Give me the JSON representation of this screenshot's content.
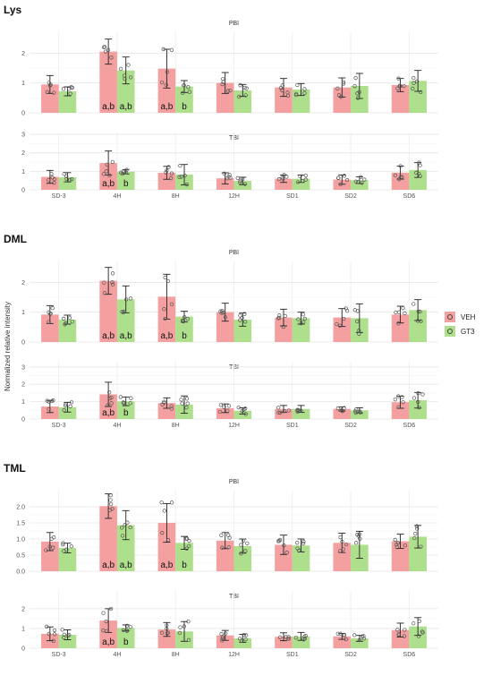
{
  "chart_data": {
    "type": "bar",
    "ylabel": "Normalized relative intensity",
    "categories": [
      "SD-3",
      "4H",
      "8H",
      "12H",
      "SD1",
      "SD2",
      "SD6"
    ],
    "legend": {
      "placement": "right",
      "entries": [
        {
          "name": "VEH",
          "color": "#f4a0a0"
        },
        {
          "name": "GT3",
          "color": "#addf8c"
        }
      ]
    },
    "error_bars": true,
    "grid": true,
    "groups": [
      {
        "title": "Lys",
        "panels": [
          {
            "title": "PBI",
            "ylim": [
              0,
              2.7
            ],
            "yticks": [
              "0",
              "1",
              "2"
            ],
            "ytick_values": [
              0,
              1,
              2
            ],
            "series": [
              {
                "name": "VEH",
                "values": [
                  0.95,
                  2.05,
                  1.48,
                  1.0,
                  0.85,
                  0.85,
                  0.93
                ],
                "errors": [
                  0.3,
                  0.42,
                  0.65,
                  0.35,
                  0.3,
                  0.32,
                  0.22
                ]
              },
              {
                "name": "GT3",
                "values": [
                  0.72,
                  1.42,
                  0.88,
                  0.75,
                  0.78,
                  0.9,
                  1.07
                ],
                "errors": [
                  0.15,
                  0.45,
                  0.2,
                  0.2,
                  0.2,
                  0.42,
                  0.35
                ]
              }
            ],
            "annotations": [
              {
                "category": "4H",
                "series": "VEH",
                "text": "a,b"
              },
              {
                "category": "4H",
                "series": "GT3",
                "text": "a,b"
              },
              {
                "category": "8H",
                "series": "VEH",
                "text": "a,b"
              },
              {
                "category": "8H",
                "series": "GT3",
                "text": "b"
              }
            ]
          },
          {
            "title": "TBI",
            "ylim": [
              0,
              3.1
            ],
            "yticks": [
              "0",
              "1",
              "2",
              "3"
            ],
            "ytick_values": [
              0,
              1,
              2,
              3
            ],
            "series": [
              {
                "name": "VEH",
                "values": [
                  0.7,
                  1.45,
                  0.92,
                  0.62,
                  0.6,
                  0.55,
                  0.93
                ],
                "errors": [
                  0.35,
                  0.65,
                  0.35,
                  0.3,
                  0.2,
                  0.25,
                  0.35
                ]
              },
              {
                "name": "GT3",
                "values": [
                  0.68,
                  0.98,
                  0.82,
                  0.48,
                  0.6,
                  0.52,
                  1.07
                ],
                "errors": [
                  0.25,
                  0.12,
                  0.55,
                  0.2,
                  0.2,
                  0.18,
                  0.4
                ]
              }
            ],
            "annotations": [
              {
                "category": "4H",
                "series": "VEH",
                "text": "a,b"
              },
              {
                "category": "4H",
                "series": "GT3",
                "text": "b"
              }
            ]
          }
        ]
      },
      {
        "title": "DML",
        "panels": [
          {
            "title": "PBI",
            "ylim": [
              0,
              2.7
            ],
            "yticks": [
              "0",
              "1",
              "2"
            ],
            "ytick_values": [
              0,
              1,
              2
            ],
            "series": [
              {
                "name": "VEH",
                "values": [
                  0.92,
                  2.05,
                  1.52,
                  1.0,
                  0.82,
                  0.82,
                  0.92
                ],
                "errors": [
                  0.3,
                  0.45,
                  0.75,
                  0.3,
                  0.28,
                  0.3,
                  0.28
                ]
              },
              {
                "name": "GT3",
                "values": [
                  0.75,
                  1.43,
                  0.85,
                  0.75,
                  0.8,
                  0.8,
                  1.07
                ],
                "errors": [
                  0.15,
                  0.45,
                  0.18,
                  0.22,
                  0.2,
                  0.48,
                  0.35
                ]
              }
            ],
            "annotations": [
              {
                "category": "4H",
                "series": "VEH",
                "text": "a,b"
              },
              {
                "category": "4H",
                "series": "GT3",
                "text": "a,b"
              },
              {
                "category": "8H",
                "series": "VEH",
                "text": "a,b"
              },
              {
                "category": "8H",
                "series": "GT3",
                "text": "b"
              }
            ]
          },
          {
            "title": "TBI",
            "ylim": [
              0,
              3.3
            ],
            "yticks": [
              "0",
              "1",
              "2",
              "3"
            ],
            "ytick_values": [
              0,
              1,
              2,
              3
            ],
            "series": [
              {
                "name": "VEH",
                "values": [
                  0.72,
                  1.42,
                  0.92,
                  0.62,
                  0.58,
                  0.58,
                  0.97
                ],
                "errors": [
                  0.35,
                  0.7,
                  0.3,
                  0.25,
                  0.2,
                  0.12,
                  0.35
                ]
              },
              {
                "name": "GT3",
                "values": [
                  0.68,
                  1.02,
                  0.83,
                  0.47,
                  0.58,
                  0.5,
                  1.08
                ],
                "errors": [
                  0.28,
                  0.25,
                  0.5,
                  0.18,
                  0.2,
                  0.15,
                  0.45
                ]
              }
            ],
            "annotations": [
              {
                "category": "4H",
                "series": "VEH",
                "text": "a,b"
              },
              {
                "category": "4H",
                "series": "GT3",
                "text": "b"
              }
            ]
          }
        ]
      },
      {
        "title": "TML",
        "panels": [
          {
            "title": "PBI",
            "ylim": [
              0,
              2.5
            ],
            "yticks": [
              "0.0",
              "0.5",
              "1.0",
              "1.5",
              "2.0"
            ],
            "ytick_values": [
              0,
              0.5,
              1.0,
              1.5,
              2.0
            ],
            "series": [
              {
                "name": "VEH",
                "values": [
                  0.92,
                  2.02,
                  1.5,
                  0.95,
                  0.82,
                  0.88,
                  0.93
                ],
                "errors": [
                  0.28,
                  0.38,
                  0.6,
                  0.25,
                  0.3,
                  0.3,
                  0.22
                ]
              },
              {
                "name": "GT3",
                "values": [
                  0.72,
                  1.43,
                  0.88,
                  0.78,
                  0.8,
                  0.82,
                  1.07
                ],
                "errors": [
                  0.15,
                  0.45,
                  0.2,
                  0.22,
                  0.2,
                  0.42,
                  0.35
                ]
              }
            ],
            "annotations": [
              {
                "category": "4H",
                "series": "VEH",
                "text": "a,b"
              },
              {
                "category": "4H",
                "series": "GT3",
                "text": "a,b"
              },
              {
                "category": "8H",
                "series": "VEH",
                "text": "a,b"
              },
              {
                "category": "8H",
                "series": "GT3",
                "text": "b"
              }
            ]
          },
          {
            "title": "TBI",
            "ylim": [
              0,
              2.9
            ],
            "yticks": [
              "0",
              "1",
              "2"
            ],
            "ytick_values": [
              0,
              1,
              2
            ],
            "series": [
              {
                "name": "VEH",
                "values": [
                  0.73,
                  1.4,
                  0.95,
                  0.65,
                  0.58,
                  0.6,
                  0.92
                ],
                "errors": [
                  0.35,
                  0.6,
                  0.35,
                  0.25,
                  0.2,
                  0.15,
                  0.35
                ]
              },
              {
                "name": "GT3",
                "values": [
                  0.68,
                  1.03,
                  0.85,
                  0.5,
                  0.6,
                  0.5,
                  1.1
                ],
                "errors": [
                  0.25,
                  0.15,
                  0.5,
                  0.2,
                  0.2,
                  0.15,
                  0.45
                ]
              }
            ],
            "annotations": [
              {
                "category": "4H",
                "series": "VEH",
                "text": "a,b"
              },
              {
                "category": "4H",
                "series": "GT3",
                "text": "b"
              }
            ]
          }
        ]
      }
    ]
  }
}
